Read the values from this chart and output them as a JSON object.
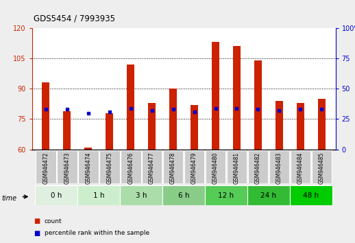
{
  "title": "GDS5454 / 7993935",
  "samples": [
    "GSM946472",
    "GSM946473",
    "GSM946474",
    "GSM946475",
    "GSM946476",
    "GSM946477",
    "GSM946478",
    "GSM946479",
    "GSM946480",
    "GSM946481",
    "GSM946482",
    "GSM946483",
    "GSM946484",
    "GSM946485"
  ],
  "count_values": [
    93,
    79,
    61,
    78,
    102,
    83,
    90,
    82,
    113,
    111,
    104,
    84,
    83,
    85
  ],
  "percentile_rank": [
    33,
    33,
    30,
    31,
    34,
    32,
    33,
    31,
    34,
    34,
    33,
    32,
    33,
    33
  ],
  "time_groups": [
    {
      "label": "0 h",
      "indices": [
        0,
        1
      ]
    },
    {
      "label": "1 h",
      "indices": [
        2,
        3
      ]
    },
    {
      "label": "3 h",
      "indices": [
        4,
        5
      ]
    },
    {
      "label": "6 h",
      "indices": [
        6,
        7
      ]
    },
    {
      "label": "12 h",
      "indices": [
        8,
        9
      ]
    },
    {
      "label": "24 h",
      "indices": [
        10,
        11
      ]
    },
    {
      "label": "48 h",
      "indices": [
        12,
        13
      ]
    }
  ],
  "time_colors": [
    "#e0f0e0",
    "#cceecc",
    "#aaddaa",
    "#88cc88",
    "#55cc55",
    "#33bb33",
    "#00cc00"
  ],
  "ylim_left": [
    60,
    120
  ],
  "ylim_right": [
    0,
    100
  ],
  "yticks_left": [
    60,
    75,
    90,
    105,
    120
  ],
  "yticks_right": [
    0,
    25,
    50,
    75,
    100
  ],
  "bar_color": "#cc2200",
  "dot_color": "#0000cc",
  "bg_color": "#eeeeee",
  "plot_bg": "#ffffff",
  "label_bg": "#cccccc",
  "bar_width": 0.35
}
